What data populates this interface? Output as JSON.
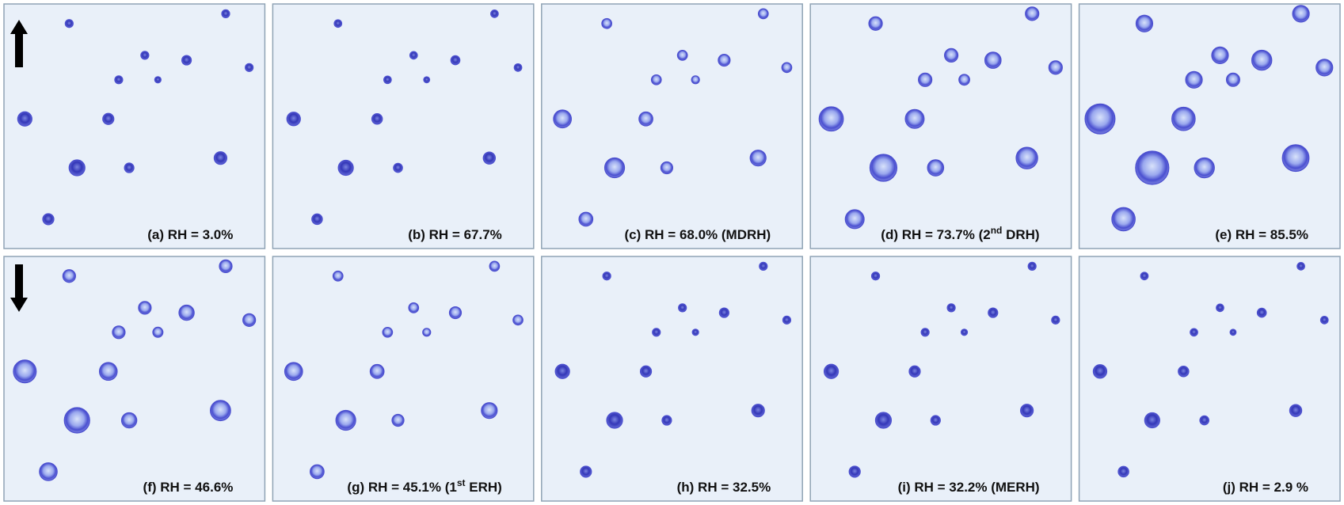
{
  "panels": [
    {
      "label": "(a) RH = 3.0%"
    },
    {
      "label": "(b) RH = 67.7%"
    },
    {
      "label": "(c) RH = 68.0%  (MDRH)"
    },
    {
      "label": {
        "text": "(d) RH = 73.7%  (2",
        "superscript": "nd",
        "suffix": " DRH)"
      }
    },
    {
      "label": "(e) RH = 85.5%"
    },
    {
      "label": "(f) RH = 46.6%"
    },
    {
      "label": {
        "text": "(g) RH = 45.1%  (1",
        "superscript": "st",
        "suffix": " ERH)"
      }
    },
    {
      "label": "(h) RH = 32.5%"
    },
    {
      "label": "(i) RH = 32.2%  (MERH)"
    },
    {
      "label": "(j) RH = 2.9 %"
    }
  ]
}
